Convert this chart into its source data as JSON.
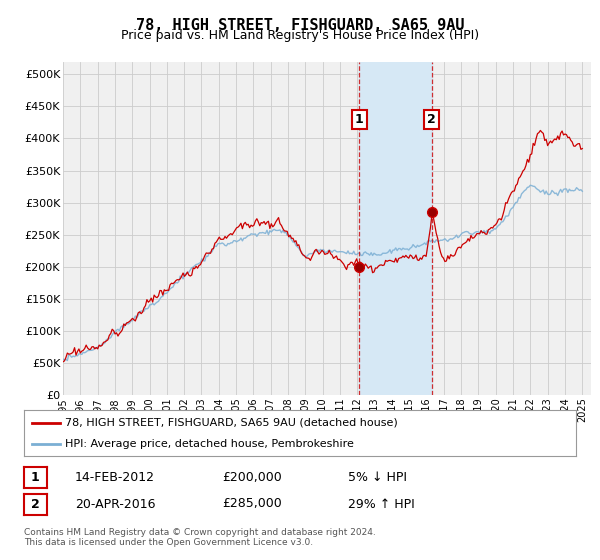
{
  "title": "78, HIGH STREET, FISHGUARD, SA65 9AU",
  "subtitle": "Price paid vs. HM Land Registry's House Price Index (HPI)",
  "ylabel_ticks": [
    "£0",
    "£50K",
    "£100K",
    "£150K",
    "£200K",
    "£250K",
    "£300K",
    "£350K",
    "£400K",
    "£450K",
    "£500K"
  ],
  "ytick_values": [
    0,
    50000,
    100000,
    150000,
    200000,
    250000,
    300000,
    350000,
    400000,
    450000,
    500000
  ],
  "ylim": [
    0,
    520000
  ],
  "xlim_start": 1995.0,
  "xlim_end": 2025.5,
  "purchase1": {
    "date": "14-FEB-2012",
    "x": 2012.12,
    "price": 200000,
    "label": "1",
    "pct": "5% ↓ HPI"
  },
  "purchase2": {
    "date": "20-APR-2016",
    "x": 2016.3,
    "price": 285000,
    "label": "2",
    "pct": "29% ↑ HPI"
  },
  "legend_line1": "78, HIGH STREET, FISHGUARD, SA65 9AU (detached house)",
  "legend_line2": "HPI: Average price, detached house, Pembrokeshire",
  "footer": "Contains HM Land Registry data © Crown copyright and database right 2024.\nThis data is licensed under the Open Government Licence v3.0.",
  "hpi_color": "#7bafd4",
  "price_color": "#cc0000",
  "bg_color": "#ffffff",
  "plot_bg": "#f0f0f0",
  "shade_color": "#d6e8f5",
  "grid_color": "#cccccc",
  "annotation_box_color": "#cc0000"
}
